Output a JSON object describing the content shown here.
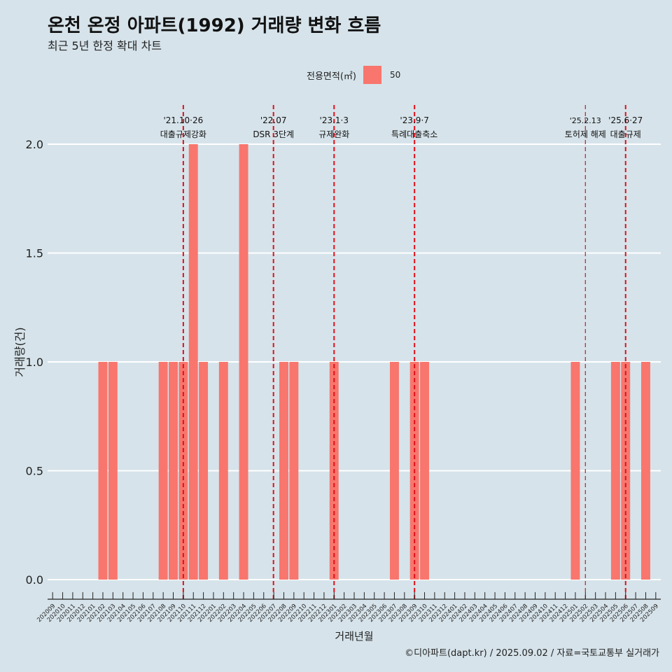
{
  "title": "온천 온정 아파트(1992) 거래량 변화 흐름",
  "subtitle": "최근 5년 한정 확대 차트",
  "legend": {
    "title": "전용면적(㎡)",
    "label": "50"
  },
  "caption": "©디아파트(dapt.kr) / 2025.09.02 / 자료=국토교통부 실거래가",
  "colors": {
    "bar": "#f8766d",
    "background": "#d6e3ea",
    "grid": "#ffffff",
    "event_line": "#e0101a"
  },
  "chart_data": {
    "type": "bar",
    "xlabel": "거래년월",
    "ylabel": "거래량(건)",
    "ylim": [
      -0.09,
      2.18
    ],
    "y_ticks": [
      0.0,
      0.5,
      1.0,
      1.5,
      2.0
    ],
    "y_tick_labels": [
      "0.0",
      "0.5",
      "1.0",
      "1.5",
      "2.0"
    ],
    "grid": true,
    "legend_position": "top",
    "categories": [
      "202009",
      "202010",
      "202011",
      "202012",
      "202101",
      "202102",
      "202103",
      "202104",
      "202105",
      "202106",
      "202107",
      "202108",
      "202109",
      "202110",
      "202111",
      "202112",
      "202201",
      "202202",
      "202203",
      "202204",
      "202205",
      "202206",
      "202207",
      "202208",
      "202209",
      "202210",
      "202211",
      "202212",
      "202301",
      "202302",
      "202303",
      "202304",
      "202305",
      "202306",
      "202307",
      "202308",
      "202309",
      "202310",
      "202311",
      "202312",
      "202401",
      "202402",
      "202403",
      "202404",
      "202405",
      "202406",
      "202407",
      "202408",
      "202409",
      "202410",
      "202411",
      "202412",
      "202501",
      "202502",
      "202503",
      "202504",
      "202505",
      "202506",
      "202507",
      "202508",
      "202509"
    ],
    "series": [
      {
        "name": "50",
        "values": [
          0,
          0,
          0,
          0,
          0,
          1,
          1,
          0,
          0,
          0,
          0,
          1,
          1,
          1,
          2,
          1,
          0,
          1,
          0,
          2,
          0,
          0,
          0,
          1,
          1,
          0,
          0,
          0,
          1,
          0,
          0,
          0,
          0,
          0,
          1,
          0,
          1,
          1,
          0,
          0,
          0,
          0,
          0,
          0,
          0,
          0,
          0,
          0,
          0,
          0,
          0,
          0,
          1,
          0,
          0,
          0,
          1,
          1,
          0,
          1,
          0
        ]
      }
    ],
    "events": [
      {
        "x": 13.0,
        "date": "'21.10·26",
        "label": "대출규제강화"
      },
      {
        "x": 21.97,
        "date": "'22.07",
        "label": "DSR 3단계"
      },
      {
        "x": 28.0,
        "date": "'23.1·3",
        "label": "규제완화"
      },
      {
        "x": 36.0,
        "date": "'23.9·7",
        "label": "특례대출축소"
      },
      {
        "x": 53.0,
        "date": "'25.2.13",
        "label": "토허제 해제"
      },
      {
        "x": 57.0,
        "date": "'25.6·27",
        "label": "대출규제"
      }
    ]
  }
}
